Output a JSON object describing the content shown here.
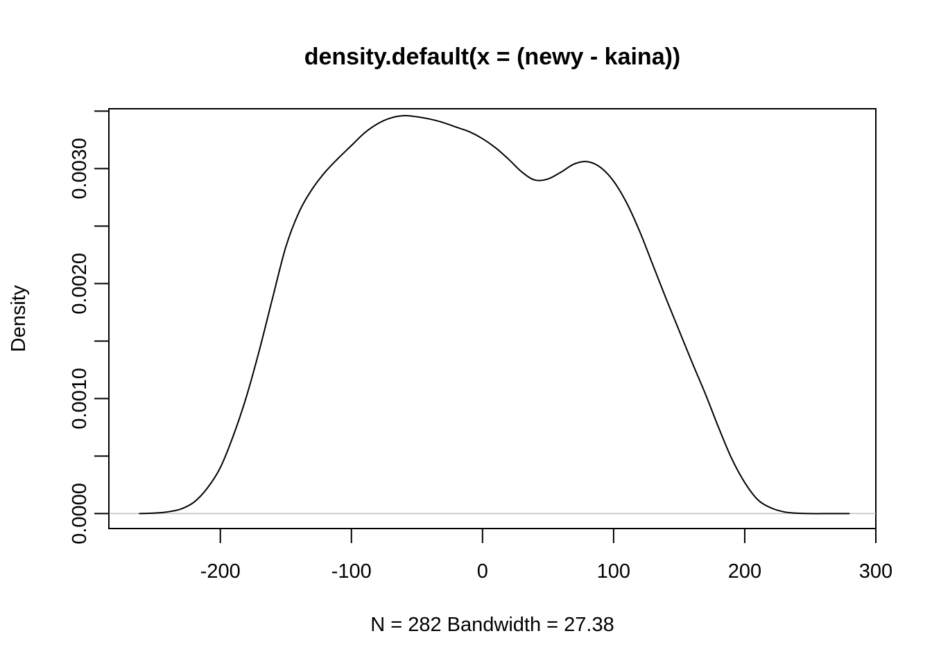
{
  "chart_data": {
    "type": "line",
    "title": "density.default(x = (newy - kaina))",
    "xlabel": "N = 282   Bandwidth = 27.38",
    "ylabel": "Density",
    "xlim": [
      -285,
      300
    ],
    "ylim": [
      -0.00013,
      0.00352
    ],
    "x_ticks": [
      -200,
      -100,
      0,
      100,
      200,
      300
    ],
    "x_tick_labels": [
      "-200",
      "-100",
      "0",
      "100",
      "200",
      "300"
    ],
    "y_ticks": [
      0,
      0.0005,
      0.001,
      0.0015,
      0.002,
      0.0025,
      0.003,
      0.0035
    ],
    "y_tick_labels": [
      "0.0000",
      "",
      "0.0010",
      "",
      "0.0020",
      "",
      "0.0030",
      ""
    ],
    "baseline": 0,
    "baseline_color": "#bebebe",
    "line_color": "#000000",
    "grid": false,
    "series": [
      {
        "x": [
          -262,
          -250,
          -240,
          -230,
          -220,
          -210,
          -200,
          -190,
          -180,
          -170,
          -160,
          -150,
          -140,
          -130,
          -120,
          -110,
          -100,
          -90,
          -80,
          -70,
          -60,
          -50,
          -40,
          -30,
          -20,
          -10,
          0,
          10,
          20,
          30,
          40,
          50,
          60,
          70,
          80,
          90,
          100,
          110,
          120,
          130,
          140,
          150,
          160,
          170,
          180,
          190,
          200,
          210,
          220,
          230,
          240,
          250,
          260,
          270,
          280
        ],
        "y": [
          0.0,
          5e-06,
          1.5e-05,
          4e-05,
          0.0001,
          0.00022,
          0.0004,
          0.00068,
          0.00102,
          0.00143,
          0.00188,
          0.00232,
          0.00262,
          0.00282,
          0.00297,
          0.00309,
          0.0032,
          0.00331,
          0.00339,
          0.00344,
          0.00346,
          0.00345,
          0.00343,
          0.0034,
          0.00336,
          0.00332,
          0.00326,
          0.00318,
          0.00308,
          0.00297,
          0.0029,
          0.00291,
          0.00297,
          0.00304,
          0.00306,
          0.00301,
          0.00289,
          0.0027,
          0.00245,
          0.00216,
          0.00187,
          0.00159,
          0.00131,
          0.00104,
          0.00075,
          0.00048,
          0.00027,
          0.00012,
          5e-05,
          1.5e-05,
          3e-06,
          0.0,
          0.0,
          0.0,
          0.0
        ]
      }
    ]
  }
}
